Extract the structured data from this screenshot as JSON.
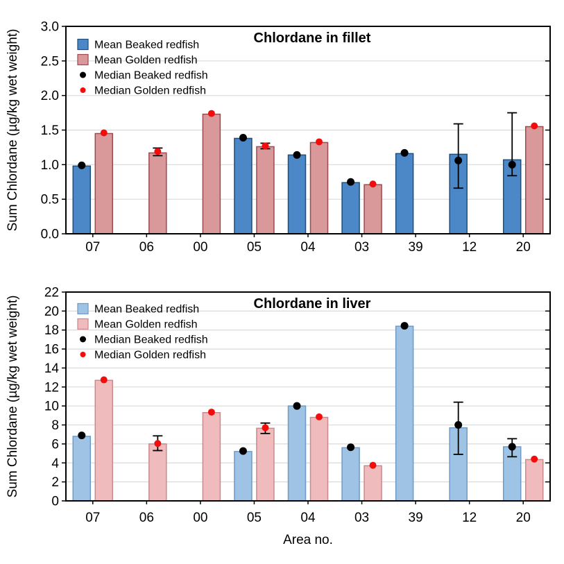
{
  "figure": {
    "xlabel": "Area no.",
    "background": "#FFFFFF"
  },
  "chart_data": [
    {
      "type": "bar",
      "title": "Chlordane in fillet",
      "xlabel": "",
      "ylabel": "Sum Chlordane (µg/kg wet weight)",
      "categories": [
        "07",
        "06",
        "00",
        "05",
        "04",
        "03",
        "39",
        "12",
        "20"
      ],
      "ylim": [
        0,
        3.0
      ],
      "yticks": [
        "0.0",
        "0.5",
        "1.0",
        "1.5",
        "2.0",
        "2.5",
        "3.0"
      ],
      "grid": true,
      "legend_position": "top-left",
      "legend": [
        "Mean Beaked redfish",
        "Mean Golden redfish",
        "Median Beaked redfish",
        "Median Golden redfish"
      ],
      "series": [
        {
          "name": "Mean Beaked redfish",
          "kind": "bar",
          "group": "beaked",
          "values": [
            0.98,
            null,
            null,
            1.38,
            1.14,
            0.74,
            1.16,
            1.15,
            1.07
          ]
        },
        {
          "name": "Mean Golden redfish",
          "kind": "bar",
          "group": "golden",
          "values": [
            1.45,
            1.17,
            1.73,
            1.26,
            1.32,
            0.71,
            null,
            null,
            1.55
          ]
        },
        {
          "name": "Median Beaked redfish",
          "kind": "point",
          "group": "beaked",
          "values": [
            0.99,
            null,
            null,
            1.39,
            1.14,
            0.75,
            1.17,
            1.06,
            1.0
          ],
          "err_low": [
            null,
            null,
            null,
            null,
            null,
            null,
            null,
            0.66,
            0.84
          ],
          "err_high": [
            null,
            null,
            null,
            null,
            null,
            null,
            null,
            1.59,
            1.75
          ]
        },
        {
          "name": "Median Golden redfish",
          "kind": "point",
          "group": "golden",
          "values": [
            1.46,
            1.19,
            1.74,
            1.27,
            1.33,
            0.72,
            null,
            null,
            1.56
          ],
          "err_low": [
            null,
            1.13,
            null,
            1.23,
            null,
            null,
            null,
            null,
            null
          ],
          "err_high": [
            null,
            1.24,
            null,
            1.31,
            null,
            null,
            null,
            null,
            null
          ]
        }
      ],
      "colors": {
        "beaked_fill": "#4C87C8",
        "beaked_edge": "#1F4E79",
        "golden_fill": "#D9989A",
        "golden_edge": "#9A4B4F",
        "median_beaked": "#000000",
        "median_golden": "#F20D0D",
        "grid": "#DADADA",
        "axis": "#000000"
      }
    },
    {
      "type": "bar",
      "title": "Chlordane in liver",
      "xlabel": "Area no.",
      "ylabel": "Sum Chlordane (µg/kg wet weight)",
      "categories": [
        "07",
        "06",
        "00",
        "05",
        "04",
        "03",
        "39",
        "12",
        "20"
      ],
      "ylim": [
        0,
        22
      ],
      "yticks": [
        "0",
        "2",
        "4",
        "6",
        "8",
        "10",
        "12",
        "14",
        "16",
        "18",
        "20",
        "22"
      ],
      "grid": true,
      "legend_position": "top-left",
      "legend": [
        "Mean Beaked redfish",
        "Mean Golden redfish",
        "Median Beaked redfish",
        "Median Golden redfish"
      ],
      "series": [
        {
          "name": "Mean Beaked redfish",
          "kind": "bar",
          "group": "beaked",
          "values": [
            6.8,
            null,
            null,
            5.2,
            10.0,
            5.6,
            18.4,
            7.7,
            5.7
          ]
        },
        {
          "name": "Mean Golden redfish",
          "kind": "bar",
          "group": "golden",
          "values": [
            12.7,
            6.0,
            9.3,
            7.65,
            8.8,
            3.7,
            null,
            null,
            4.35
          ]
        },
        {
          "name": "Median Beaked redfish",
          "kind": "point",
          "group": "beaked",
          "values": [
            6.9,
            null,
            null,
            5.25,
            10.0,
            5.65,
            18.45,
            8.0,
            5.7
          ],
          "err_low": [
            null,
            null,
            null,
            null,
            null,
            null,
            null,
            4.9,
            4.65
          ],
          "err_high": [
            null,
            null,
            null,
            null,
            null,
            null,
            null,
            10.4,
            6.55
          ]
        },
        {
          "name": "Median Golden redfish",
          "kind": "point",
          "group": "golden",
          "values": [
            12.75,
            6.05,
            9.35,
            7.7,
            8.85,
            3.75,
            null,
            null,
            4.4
          ],
          "err_low": [
            null,
            5.3,
            null,
            7.1,
            null,
            null,
            null,
            null,
            null
          ],
          "err_high": [
            null,
            6.85,
            null,
            8.2,
            null,
            null,
            null,
            null,
            null
          ]
        }
      ],
      "colors": {
        "beaked_fill": "#9EC3E5",
        "beaked_edge": "#6E9AC4",
        "golden_fill": "#EFBBBD",
        "golden_edge": "#C9898D",
        "median_beaked": "#000000",
        "median_golden": "#F20D0D",
        "grid": "#DADADA",
        "axis": "#000000"
      }
    }
  ]
}
